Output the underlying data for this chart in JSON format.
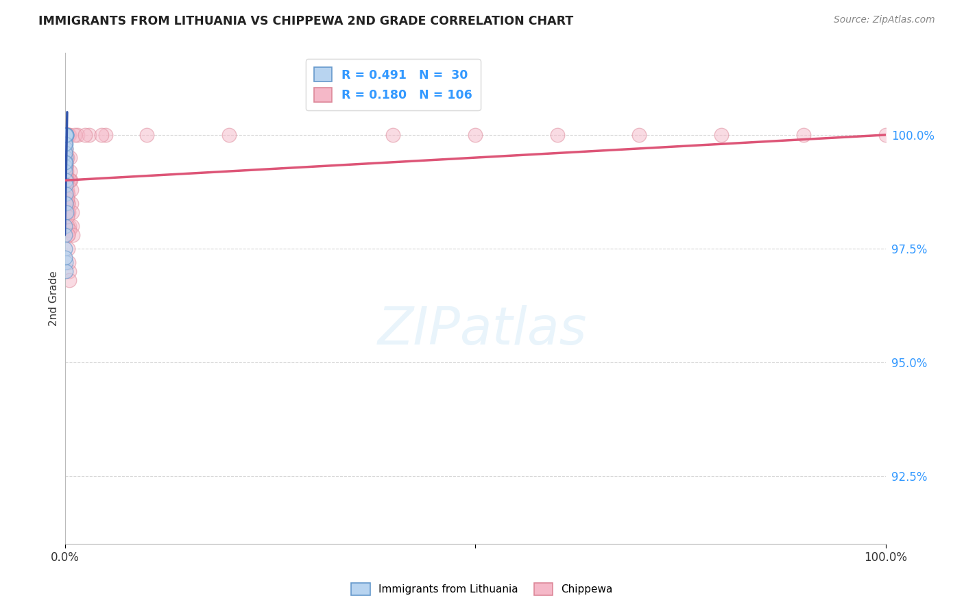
{
  "title": "IMMIGRANTS FROM LITHUANIA VS CHIPPEWA 2ND GRADE CORRELATION CHART",
  "source": "Source: ZipAtlas.com",
  "ylabel": "2nd Grade",
  "xlim": [
    0.0,
    100.0
  ],
  "ylim": [
    91.0,
    101.8
  ],
  "yticks": [
    92.5,
    95.0,
    97.5,
    100.0
  ],
  "ytick_labels": [
    "92.5%",
    "95.0%",
    "97.5%",
    "100.0%"
  ],
  "xticks": [
    0.0,
    50.0,
    100.0
  ],
  "xtick_labels": [
    "0.0%",
    "",
    "100.0%"
  ],
  "blue_R": "0.491",
  "blue_N": "30",
  "pink_R": "0.180",
  "pink_N": "106",
  "blue_label": "Immigrants from Lithuania",
  "pink_label": "Chippewa",
  "background_color": "#ffffff",
  "grid_color": "#cccccc",
  "title_color": "#222222",
  "blue_fill": "#b8d4f0",
  "pink_fill": "#f5b8c8",
  "blue_edge": "#6699cc",
  "pink_edge": "#dd8899",
  "blue_line_color": "#3355aa",
  "pink_line_color": "#dd5577",
  "legend_color": "#3399ff",
  "blue_scatter_x": [
    0.05,
    0.07,
    0.09,
    0.11,
    0.13,
    0.15,
    0.17,
    0.19,
    0.21,
    0.08,
    0.1,
    0.12,
    0.14,
    0.06,
    0.04,
    0.08,
    0.1,
    0.12,
    0.16,
    0.2,
    0.03,
    0.05,
    0.07,
    0.09,
    0.11,
    0.04,
    0.02,
    0.06,
    0.08,
    0.05
  ],
  "blue_scatter_y": [
    100.0,
    100.0,
    100.0,
    100.0,
    100.0,
    100.0,
    100.0,
    100.0,
    100.0,
    99.8,
    99.7,
    99.5,
    99.4,
    99.3,
    99.2,
    99.0,
    98.9,
    98.7,
    98.5,
    98.3,
    98.0,
    97.8,
    97.5,
    97.2,
    97.0,
    99.6,
    99.4,
    99.8,
    100.0,
    97.3
  ],
  "pink_scatter_x": [
    0.03,
    0.04,
    0.05,
    0.06,
    0.07,
    0.08,
    0.09,
    0.1,
    0.11,
    0.12,
    0.13,
    0.14,
    0.15,
    0.16,
    0.17,
    0.18,
    0.19,
    0.2,
    0.22,
    0.24,
    0.26,
    0.28,
    0.3,
    0.35,
    0.4,
    0.45,
    0.5,
    0.06,
    0.08,
    0.1,
    0.12,
    0.14,
    0.16,
    0.18,
    0.2,
    0.05,
    0.07,
    0.09,
    0.11,
    0.13,
    0.15,
    0.25,
    0.3,
    0.35,
    0.4,
    0.5,
    0.6,
    0.7,
    0.8,
    0.9,
    0.05,
    0.1,
    0.15,
    0.2,
    0.25,
    0.3,
    0.4,
    0.5,
    0.05,
    0.08,
    0.12,
    0.18,
    0.25,
    0.35,
    1.5,
    3.0,
    5.0,
    0.3,
    0.5,
    0.2,
    0.25,
    0.35,
    0.45,
    0.55,
    0.65,
    0.75,
    0.85,
    0.95,
    0.6,
    0.4,
    0.04,
    0.06,
    0.08,
    0.1,
    0.12,
    0.14,
    0.2,
    0.3,
    1.2,
    2.5,
    4.5,
    50.0,
    80.0,
    100.0,
    0.25,
    0.15,
    0.35,
    0.45,
    0.55,
    10.0,
    20.0,
    60.0,
    90.0,
    70.0,
    40.0
  ],
  "pink_scatter_y": [
    100.0,
    100.0,
    100.0,
    100.0,
    100.0,
    100.0,
    100.0,
    100.0,
    100.0,
    100.0,
    100.0,
    100.0,
    100.0,
    100.0,
    100.0,
    100.0,
    100.0,
    100.0,
    100.0,
    100.0,
    100.0,
    100.0,
    100.0,
    100.0,
    100.0,
    100.0,
    100.0,
    99.8,
    99.7,
    99.5,
    99.4,
    99.3,
    99.2,
    99.1,
    99.0,
    99.6,
    99.4,
    99.3,
    99.2,
    99.1,
    99.0,
    98.8,
    98.7,
    98.5,
    98.3,
    98.0,
    99.5,
    99.0,
    98.5,
    98.0,
    99.2,
    99.0,
    98.8,
    98.5,
    98.3,
    98.0,
    97.5,
    97.0,
    99.5,
    99.3,
    99.0,
    98.7,
    98.3,
    97.8,
    100.0,
    100.0,
    100.0,
    99.5,
    99.0,
    99.2,
    99.0,
    98.7,
    98.3,
    97.9,
    99.2,
    98.8,
    98.3,
    97.8,
    99.0,
    98.5,
    99.8,
    99.7,
    99.6,
    99.4,
    99.3,
    99.1,
    99.0,
    98.6,
    100.0,
    100.0,
    100.0,
    100.0,
    100.0,
    100.0,
    98.2,
    98.5,
    97.8,
    97.2,
    96.8,
    100.0,
    100.0,
    100.0,
    100.0,
    100.0,
    100.0
  ],
  "blue_trendline_x": [
    0.0,
    0.28
  ],
  "blue_trendline_y": [
    97.8,
    100.5
  ],
  "pink_trendline_x": [
    0.0,
    100.0
  ],
  "pink_trendline_y": [
    99.0,
    100.0
  ]
}
